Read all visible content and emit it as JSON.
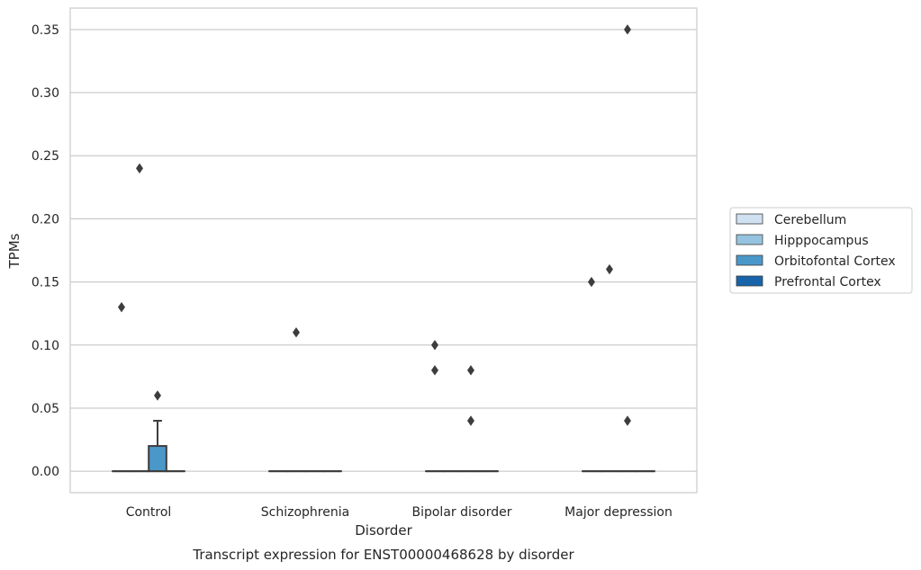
{
  "chart_data": {
    "type": "box",
    "title": "",
    "caption": "Transcript expression for ENST00000468628 by disorder",
    "xlabel": "Disorder",
    "ylabel": "TPMs",
    "ylim": [
      -0.017,
      0.367
    ],
    "yticks": [
      "0.00",
      "0.05",
      "0.10",
      "0.15",
      "0.20",
      "0.25",
      "0.30",
      "0.35"
    ],
    "grid": true,
    "legend_position": "right",
    "categories": [
      "Control",
      "Schizophrenia",
      "Bipolar disorder",
      "Major depression"
    ],
    "series": [
      {
        "name": "Cerebellum",
        "color": "#d0e1f2",
        "boxes": [
          {
            "category": "Control",
            "q1": 0,
            "median": 0,
            "q3": 0,
            "whisker_low": 0,
            "whisker_high": 0,
            "outliers": [
              0.13
            ]
          },
          {
            "category": "Schizophrenia",
            "q1": 0,
            "median": 0,
            "q3": 0,
            "whisker_low": 0,
            "whisker_high": 0,
            "outliers": []
          },
          {
            "category": "Bipolar disorder",
            "q1": 0,
            "median": 0,
            "q3": 0,
            "whisker_low": 0,
            "whisker_high": 0,
            "outliers": [
              0.08,
              0.1
            ]
          },
          {
            "category": "Major depression",
            "q1": 0,
            "median": 0,
            "q3": 0,
            "whisker_low": 0,
            "whisker_high": 0,
            "outliers": [
              0.15
            ]
          }
        ]
      },
      {
        "name": "Hipppocampus",
        "color": "#94c4df",
        "boxes": [
          {
            "category": "Control",
            "q1": 0,
            "median": 0,
            "q3": 0,
            "whisker_low": 0,
            "whisker_high": 0,
            "outliers": [
              0.24
            ]
          },
          {
            "category": "Schizophrenia",
            "q1": 0,
            "median": 0,
            "q3": 0,
            "whisker_low": 0,
            "whisker_high": 0,
            "outliers": [
              0.11
            ]
          },
          {
            "category": "Bipolar disorder",
            "q1": 0,
            "median": 0,
            "q3": 0,
            "whisker_low": 0,
            "whisker_high": 0,
            "outliers": []
          },
          {
            "category": "Major depression",
            "q1": 0,
            "median": 0,
            "q3": 0,
            "whisker_low": 0,
            "whisker_high": 0,
            "outliers": [
              0.16
            ]
          }
        ]
      },
      {
        "name": "Orbitofontal Cortex",
        "color": "#4a98c9",
        "boxes": [
          {
            "category": "Control",
            "q1": 0,
            "median": 0,
            "q3": 0.02,
            "whisker_low": 0,
            "whisker_high": 0.04,
            "outliers": [
              0.06
            ]
          },
          {
            "category": "Schizophrenia",
            "q1": 0,
            "median": 0,
            "q3": 0,
            "whisker_low": 0,
            "whisker_high": 0,
            "outliers": []
          },
          {
            "category": "Bipolar disorder",
            "q1": 0,
            "median": 0,
            "q3": 0,
            "whisker_low": 0,
            "whisker_high": 0,
            "outliers": [
              0.04,
              0.08
            ]
          },
          {
            "category": "Major depression",
            "q1": 0,
            "median": 0,
            "q3": 0,
            "whisker_low": 0,
            "whisker_high": 0,
            "outliers": [
              0.04,
              0.35
            ]
          }
        ]
      },
      {
        "name": "Prefrontal Cortex",
        "color": "#1764ab",
        "boxes": [
          {
            "category": "Control",
            "q1": 0,
            "median": 0,
            "q3": 0,
            "whisker_low": 0,
            "whisker_high": 0,
            "outliers": []
          },
          {
            "category": "Schizophrenia",
            "q1": 0,
            "median": 0,
            "q3": 0,
            "whisker_low": 0,
            "whisker_high": 0,
            "outliers": []
          },
          {
            "category": "Bipolar disorder",
            "q1": 0,
            "median": 0,
            "q3": 0,
            "whisker_low": 0,
            "whisker_high": 0,
            "outliers": []
          },
          {
            "category": "Major depression",
            "q1": 0,
            "median": 0,
            "q3": 0,
            "whisker_low": 0,
            "whisker_high": 0,
            "outliers": []
          }
        ]
      }
    ]
  }
}
